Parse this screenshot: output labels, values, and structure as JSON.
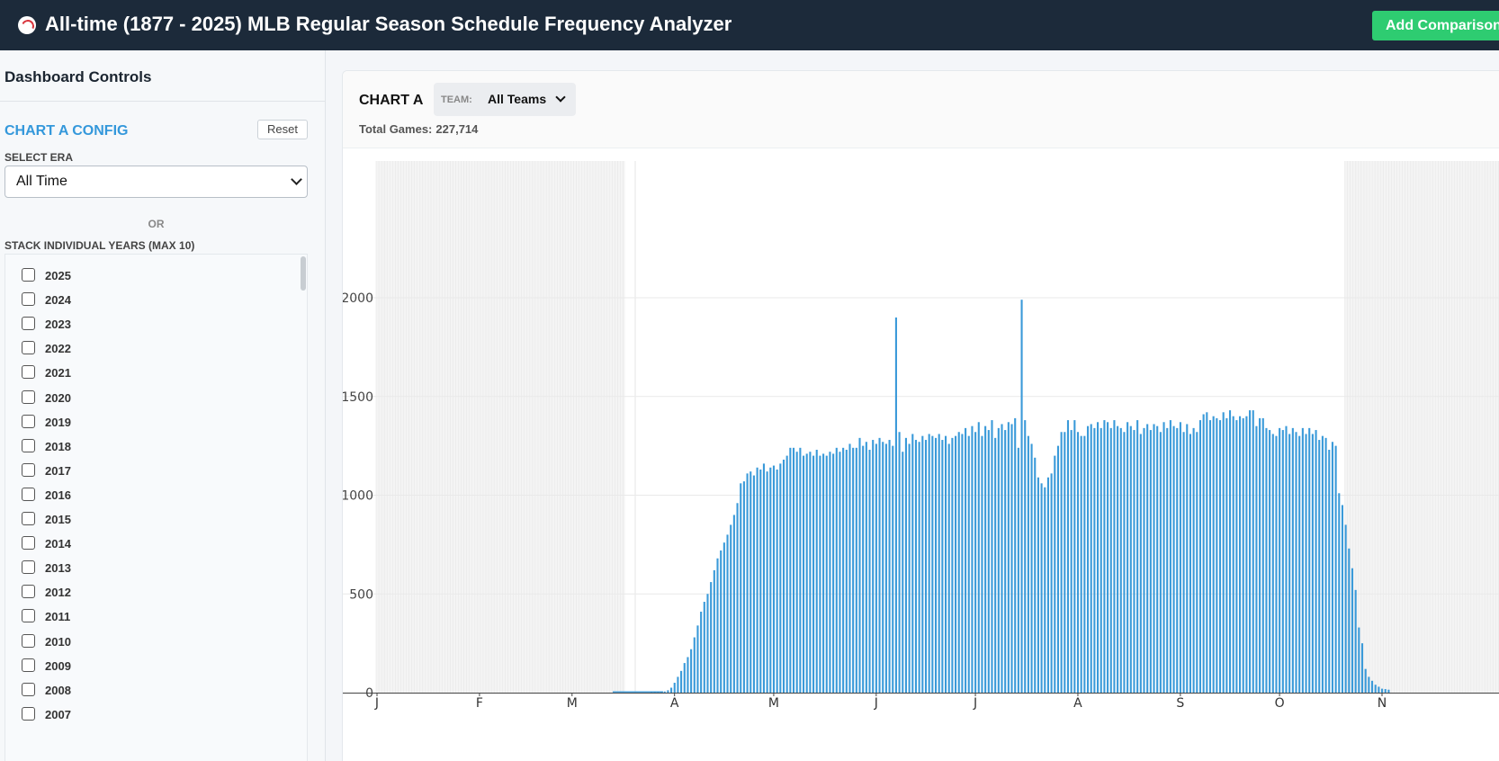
{
  "header": {
    "icon": "baseball-icon",
    "title": "All-time (1877 - 2025) MLB Regular Season Schedule Frequency Analyzer",
    "add_button": "Add Comparison"
  },
  "sidebar": {
    "title": "Dashboard Controls",
    "config_title": "CHART A CONFIG",
    "reset_label": "Reset",
    "era_label": "SELECT ERA",
    "era_value": "All Time",
    "or_label": "OR",
    "stack_label": "STACK INDIVIDUAL YEARS (MAX 10)",
    "years": [
      "2025",
      "2024",
      "2023",
      "2022",
      "2021",
      "2020",
      "2019",
      "2018",
      "2017",
      "2016",
      "2015",
      "2014",
      "2013",
      "2012",
      "2011",
      "2010",
      "2009",
      "2008",
      "2007"
    ]
  },
  "chart_header": {
    "title": "CHART A",
    "team_label": "TEAM:",
    "team_value": "All Teams",
    "total_label": "Total Games:",
    "total_value": "227,714"
  },
  "chart_data": {
    "type": "bar",
    "xlabel": "",
    "ylabel": "",
    "x_unit": "day of year",
    "xlim": [
      1,
      366
    ],
    "ylim": [
      0,
      2180
    ],
    "y_ticks": [
      0,
      500,
      1000,
      1500,
      2000
    ],
    "month_ticks": [
      {
        "label": "J",
        "day": 1
      },
      {
        "label": "F",
        "day": 32
      },
      {
        "label": "M",
        "day": 60
      },
      {
        "label": "A",
        "day": 91
      },
      {
        "label": "M",
        "day": 121
      },
      {
        "label": "J",
        "day": 152
      },
      {
        "label": "J",
        "day": 182
      },
      {
        "label": "A",
        "day": 213
      },
      {
        "label": "S",
        "day": 244
      },
      {
        "label": "O",
        "day": 274
      },
      {
        "label": "N",
        "day": 305
      }
    ],
    "off_season_shading": [
      [
        1,
        76
      ],
      [
        294,
        366
      ]
    ],
    "grid": true,
    "color": "#3a9ad9",
    "start_day": 84,
    "values": [
      2,
      3,
      3,
      4,
      6,
      12,
      25,
      50,
      80,
      110,
      150,
      180,
      220,
      280,
      340,
      410,
      460,
      500,
      560,
      620,
      680,
      720,
      760,
      800,
      850,
      900,
      960,
      1060,
      1070,
      1110,
      1120,
      1100,
      1140,
      1130,
      1160,
      1120,
      1140,
      1150,
      1130,
      1160,
      1180,
      1200,
      1240,
      1240,
      1220,
      1240,
      1200,
      1210,
      1220,
      1200,
      1230,
      1200,
      1210,
      1200,
      1220,
      1210,
      1240,
      1220,
      1240,
      1230,
      1260,
      1240,
      1240,
      1290,
      1250,
      1270,
      1230,
      1280,
      1260,
      1290,
      1270,
      1260,
      1280,
      1250,
      1900,
      1320,
      1220,
      1290,
      1260,
      1310,
      1280,
      1270,
      1300,
      1280,
      1310,
      1300,
      1290,
      1310,
      1280,
      1300,
      1260,
      1290,
      1300,
      1320,
      1310,
      1340,
      1300,
      1350,
      1320,
      1370,
      1300,
      1350,
      1330,
      1380,
      1290,
      1340,
      1360,
      1330,
      1370,
      1360,
      1390,
      1240,
      1990,
      1380,
      1300,
      1260,
      1190,
      1090,
      1060,
      1040,
      1090,
      1110,
      1200,
      1250,
      1320,
      1320,
      1380,
      1330,
      1380,
      1320,
      1300,
      1300,
      1350,
      1360,
      1340,
      1370,
      1340,
      1380,
      1370,
      1340,
      1380,
      1350,
      1340,
      1320,
      1370,
      1350,
      1330,
      1380,
      1310,
      1340,
      1360,
      1330,
      1360,
      1350,
      1320,
      1370,
      1340,
      1380,
      1350,
      1340,
      1370,
      1320,
      1360,
      1310,
      1340,
      1320,
      1380,
      1410,
      1420,
      1380,
      1400,
      1390,
      1380,
      1420,
      1390,
      1430,
      1400,
      1380,
      1400,
      1390,
      1400,
      1430,
      1430,
      1350,
      1390,
      1390,
      1340,
      1330,
      1310,
      1300,
      1340,
      1330,
      1350,
      1310,
      1340,
      1320,
      1300,
      1340,
      1310,
      1340,
      1310,
      1330,
      1280,
      1300,
      1290,
      1230,
      1270,
      1250,
      1010,
      950,
      850,
      730,
      630,
      520,
      330,
      250,
      120,
      80,
      60,
      40,
      30,
      20,
      18,
      15
    ]
  }
}
